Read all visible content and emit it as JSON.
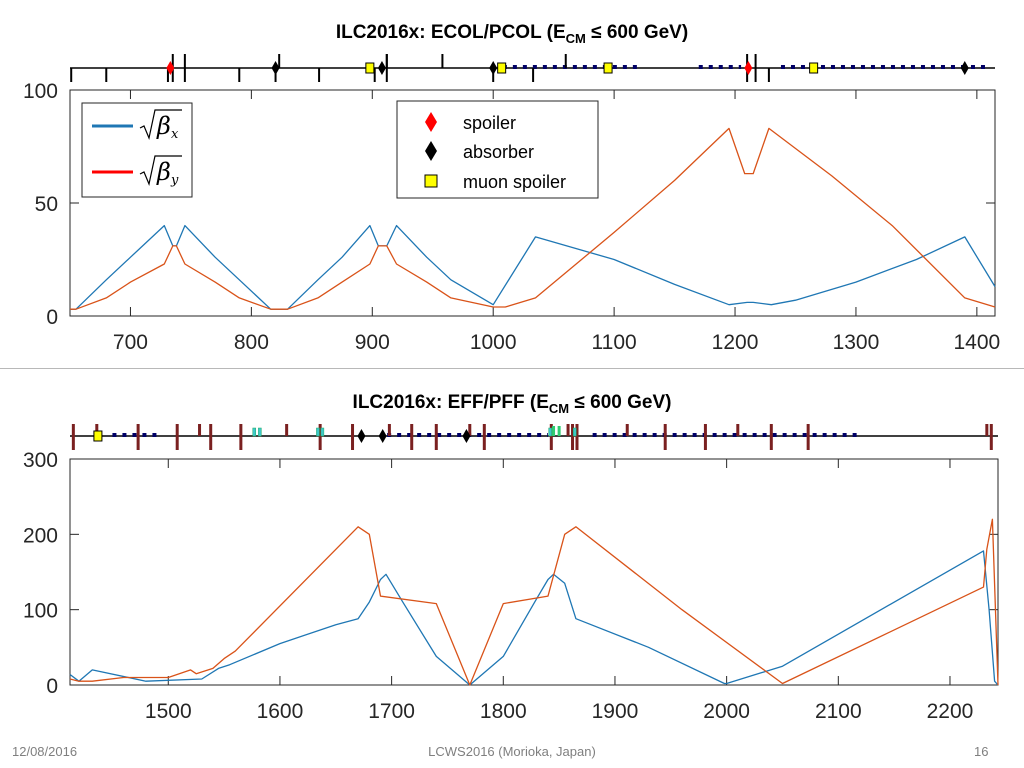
{
  "slide": {
    "footer_date": "12/08/2016",
    "footer_center": "LCWS2016 (Morioka, Japan)",
    "footer_page": "16"
  },
  "colors": {
    "blue": "#1f77b4",
    "orange": "#d95319",
    "red": "#ff0000",
    "black": "#000000",
    "yellow": "#ffff00",
    "navy": "#000066",
    "brown": "#7a2020",
    "green": "#2ecc71",
    "teal": "#3cc8c8"
  },
  "chart_data": [
    {
      "type": "line",
      "title": "ILC2016x: ECOL/PCOL (E",
      "title_sub": "CM",
      "title_end": " ≤ 600 GeV)",
      "xlim": [
        650,
        1415
      ],
      "ylim": [
        0,
        100
      ],
      "xticks": [
        700,
        800,
        900,
        1000,
        1100,
        1200,
        1300,
        1400
      ],
      "yticks": [
        0,
        50,
        100
      ],
      "legend_beta": [
        {
          "symbol": "β",
          "sub": "x",
          "color": "#1f77b4"
        },
        {
          "symbol": "β",
          "sub": "y",
          "color": "#ff0000"
        }
      ],
      "legend_elements": {
        "spoiler": "spoiler",
        "absorber": "absorber",
        "muon": "muon spoiler"
      },
      "series": [
        {
          "key": "betax",
          "color": "#1f77b4",
          "x": [
            650,
            655,
            680,
            700,
            728,
            735,
            738,
            745,
            770,
            790,
            816,
            820,
            826,
            830,
            855,
            875,
            898,
            905,
            912,
            920,
            945,
            965,
            1000,
            1035,
            1100,
            1150,
            1195,
            1210,
            1215,
            1230,
            1250,
            1300,
            1350,
            1390,
            1415
          ],
          "y": [
            3,
            3,
            16,
            26,
            40,
            31,
            31,
            40,
            26,
            16,
            3,
            3,
            3,
            3,
            16,
            26,
            40,
            31,
            31,
            40,
            26,
            16,
            5,
            35,
            25,
            14,
            5,
            6,
            6,
            5,
            7,
            15,
            25,
            35,
            13
          ]
        },
        {
          "key": "betay",
          "color": "#d95319",
          "x": [
            650,
            655,
            680,
            700,
            728,
            735,
            738,
            745,
            770,
            790,
            816,
            820,
            826,
            830,
            855,
            875,
            898,
            905,
            912,
            920,
            945,
            965,
            1000,
            1010,
            1035,
            1100,
            1150,
            1195,
            1208,
            1215,
            1228,
            1280,
            1330,
            1390,
            1415
          ],
          "y": [
            3,
            3,
            8,
            15,
            23,
            31,
            31,
            23,
            15,
            8,
            3,
            3,
            3,
            3,
            8,
            15,
            23,
            31,
            31,
            23,
            15,
            8,
            4,
            4,
            8,
            37,
            60,
            83,
            63,
            63,
            83,
            62,
            40,
            8,
            4
          ]
        }
      ],
      "elements": {
        "spoilers": [
          733,
          1211
        ],
        "absorbers": [
          820,
          908,
          1000,
          1390
        ],
        "muon_spoilers": [
          898,
          1007,
          1095,
          1265
        ],
        "long_tall": [
          735,
          745,
          912,
          1210,
          1217
        ],
        "short_tall": [
          651,
          680,
          731,
          790,
          820,
          856,
          902,
          1000,
          1033,
          1228
        ],
        "small_up": [
          823,
          912,
          958,
          1060
        ],
        "navy_range": [
          1008,
          1120,
          1170,
          1205,
          1238,
          1410
        ]
      }
    },
    {
      "type": "line",
      "title": "ILC2016x: EFF/PFF (E",
      "title_sub": "CM",
      "title_end": " ≤ 600 GeV)",
      "xlim": [
        1412,
        2243
      ],
      "ylim": [
        0,
        300
      ],
      "xticks": [
        1500,
        1600,
        1700,
        1800,
        1900,
        2000,
        2100,
        2200
      ],
      "yticks": [
        0,
        100,
        200,
        300
      ],
      "series": [
        {
          "key": "blue",
          "color": "#1f77b4",
          "x": [
            1412,
            1420,
            1432,
            1480,
            1530,
            1545,
            1555,
            1600,
            1650,
            1670,
            1680,
            1690,
            1695,
            1710,
            1740,
            1770,
            1800,
            1830,
            1840,
            1845,
            1855,
            1865,
            1930,
            1998,
            2000,
            2050,
            2230,
            2235,
            2240,
            2243
          ],
          "y": [
            14,
            5,
            20,
            5,
            8,
            22,
            27,
            55,
            80,
            88,
            110,
            140,
            147,
            110,
            38,
            0,
            38,
            115,
            140,
            147,
            135,
            88,
            50,
            2,
            2,
            25,
            178,
            100,
            5,
            0
          ]
        },
        {
          "key": "orange",
          "color": "#d95319",
          "x": [
            1412,
            1420,
            1432,
            1460,
            1500,
            1520,
            1525,
            1540,
            1550,
            1560,
            1670,
            1680,
            1690,
            1740,
            1770,
            1800,
            1840,
            1855,
            1865,
            1960,
            2050,
            2230,
            2233,
            2238,
            2243
          ],
          "y": [
            8,
            5,
            5,
            10,
            10,
            20,
            15,
            22,
            35,
            45,
            210,
            200,
            118,
            108,
            0,
            108,
            118,
            200,
            210,
            100,
            2,
            130,
            180,
            220,
            0
          ]
        }
      ],
      "elements": {
        "absorbers": [
          1673,
          1692,
          1767
        ],
        "muon_spoilers": [
          1437
        ],
        "brown_marks": [
          1415,
          1436,
          1473,
          1508,
          1528,
          1538,
          1565,
          1606,
          1636,
          1665,
          1698,
          1718,
          1740,
          1770,
          1783,
          1843,
          1858,
          1862,
          1866,
          1911,
          1945,
          1981,
          2010,
          2040,
          2073,
          2233,
          2237
        ],
        "navy_range": [
          1450,
          1490,
          1696,
          1840,
          1880,
          2120
        ],
        "teal_marks": [
          1577,
          1582,
          1634,
          1638,
          1842,
          1864
        ],
        "green_marks": [
          1845,
          1850
        ]
      }
    }
  ]
}
